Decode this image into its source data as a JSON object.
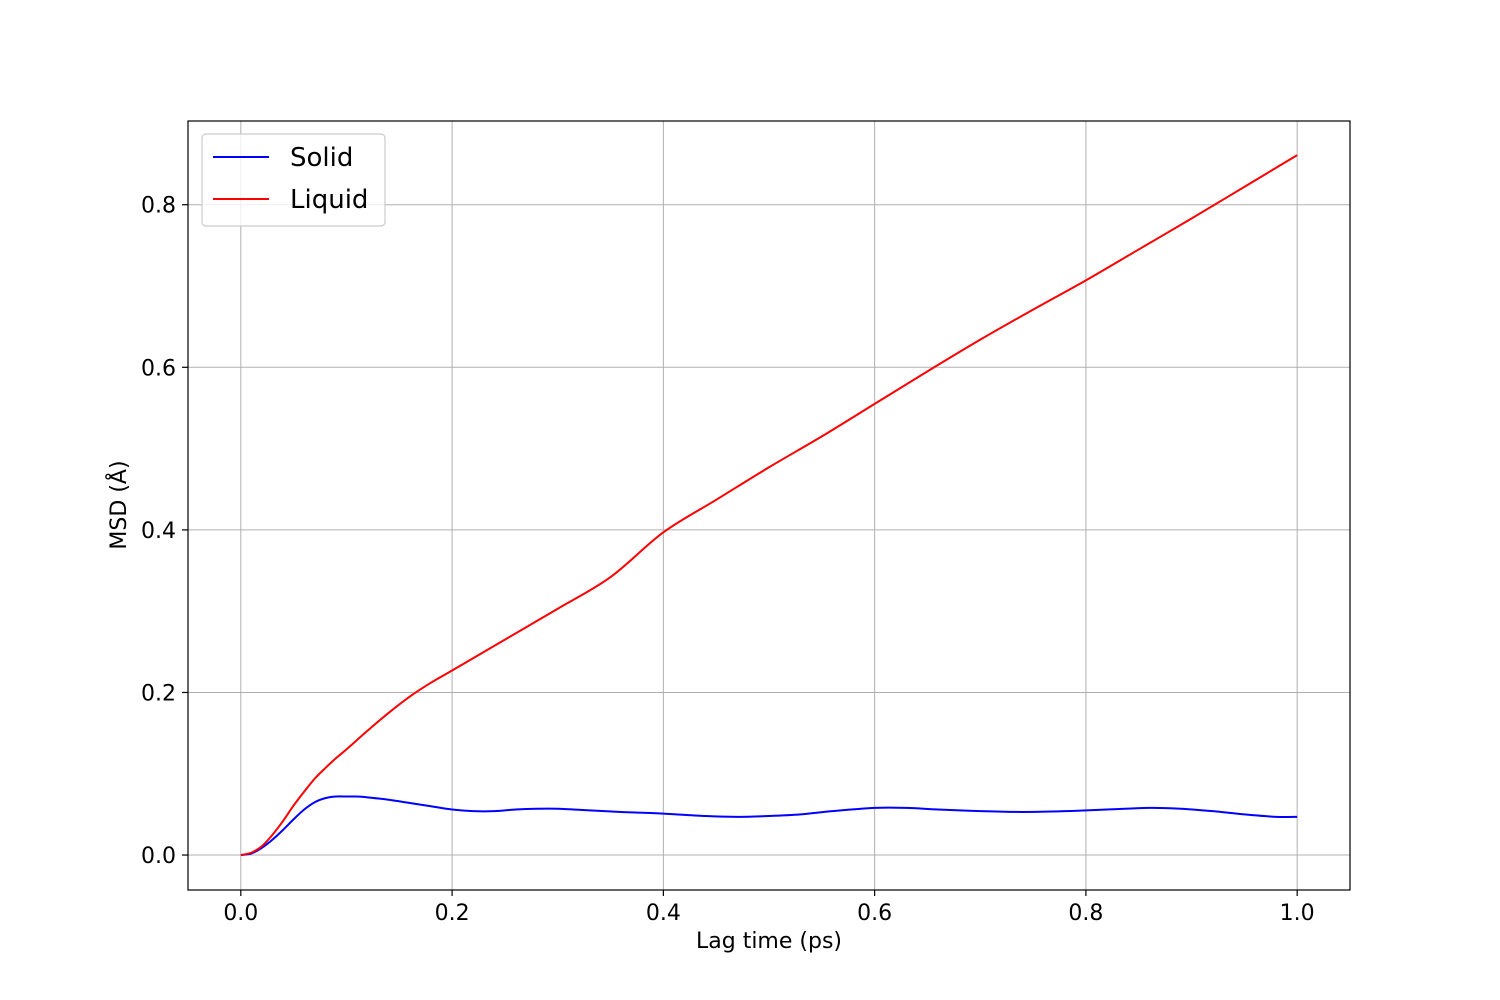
{
  "chart_data": {
    "type": "line",
    "xlabel": "Lag time (ps)",
    "ylabel": "MSD (Å)",
    "xlim": [
      -0.05,
      1.05
    ],
    "ylim": [
      -0.043,
      0.903
    ],
    "xticks": [
      0.0,
      0.2,
      0.4,
      0.6,
      0.8,
      1.0
    ],
    "xtick_labels": [
      "0.0",
      "0.2",
      "0.4",
      "0.6",
      "0.8",
      "1.0"
    ],
    "yticks": [
      0.0,
      0.2,
      0.4,
      0.6,
      0.8
    ],
    "ytick_labels": [
      "0.0",
      "0.2",
      "0.4",
      "0.6",
      "0.8"
    ],
    "grid": true,
    "legend_position": "upper-left",
    "series": [
      {
        "name": "Solid",
        "color": "#0000ff",
        "x": [
          0.0,
          0.01,
          0.02,
          0.03,
          0.04,
          0.05,
          0.06,
          0.07,
          0.08,
          0.09,
          0.1,
          0.11,
          0.12,
          0.14,
          0.16,
          0.18,
          0.2,
          0.22,
          0.24,
          0.26,
          0.28,
          0.3,
          0.33,
          0.36,
          0.4,
          0.44,
          0.47,
          0.5,
          0.53,
          0.56,
          0.6,
          0.63,
          0.66,
          0.7,
          0.74,
          0.78,
          0.82,
          0.86,
          0.89,
          0.92,
          0.95,
          0.98,
          1.0
        ],
        "y": [
          0.0,
          0.002,
          0.009,
          0.019,
          0.031,
          0.044,
          0.056,
          0.065,
          0.07,
          0.072,
          0.072,
          0.072,
          0.071,
          0.068,
          0.064,
          0.06,
          0.056,
          0.054,
          0.054,
          0.056,
          0.057,
          0.057,
          0.055,
          0.053,
          0.051,
          0.048,
          0.047,
          0.048,
          0.05,
          0.054,
          0.058,
          0.058,
          0.056,
          0.054,
          0.053,
          0.054,
          0.056,
          0.058,
          0.057,
          0.054,
          0.05,
          0.047,
          0.047
        ]
      },
      {
        "name": "Liquid",
        "color": "#ff0000",
        "x": [
          0.0,
          0.01,
          0.02,
          0.03,
          0.04,
          0.05,
          0.06,
          0.07,
          0.08,
          0.09,
          0.1,
          0.12,
          0.14,
          0.16,
          0.18,
          0.2,
          0.25,
          0.3,
          0.35,
          0.4,
          0.45,
          0.5,
          0.55,
          0.6,
          0.65,
          0.7,
          0.75,
          0.8,
          0.85,
          0.9,
          0.95,
          1.0
        ],
        "y": [
          0.0,
          0.003,
          0.011,
          0.025,
          0.042,
          0.061,
          0.078,
          0.094,
          0.107,
          0.119,
          0.13,
          0.153,
          0.175,
          0.195,
          0.212,
          0.227,
          0.265,
          0.303,
          0.342,
          0.397,
          0.437,
          0.477,
          0.515,
          0.555,
          0.595,
          0.634,
          0.671,
          0.707,
          0.745,
          0.783,
          0.822,
          0.861
        ]
      }
    ]
  }
}
